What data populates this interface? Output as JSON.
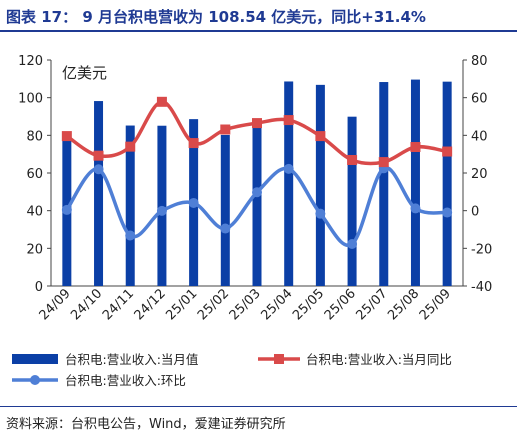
{
  "header": {
    "title": "图表 17： 9 月台积电营收为 108.54 亿美元，同比+31.4%"
  },
  "footer": {
    "source": "资料来源：台积电公告，Wind，爱建证券研究所"
  },
  "chart_data": {
    "type": "bar+line",
    "unit_label": "亿美元",
    "categories": [
      "24/09",
      "24/10",
      "24/11",
      "24/12",
      "25/01",
      "25/02",
      "25/03",
      "25/04",
      "25/05",
      "25/06",
      "25/07",
      "25/08",
      "25/09"
    ],
    "left_axis": {
      "min": 0,
      "max": 120,
      "ticks": [
        0,
        20,
        40,
        60,
        80,
        100,
        120
      ]
    },
    "right_axis": {
      "min": -40,
      "max": 80,
      "ticks": [
        -40,
        -20,
        0,
        20,
        40,
        60,
        80
      ]
    },
    "series": [
      {
        "name": "台积电:营业收入:当月值",
        "type": "bar",
        "axis": "left",
        "color": "#0b3fa6",
        "values": [
          80.5,
          98.2,
          85.2,
          85.1,
          88.6,
          80.2,
          87.9,
          108.6,
          106.8,
          89.9,
          108.3,
          109.6,
          108.5
        ]
      },
      {
        "name": "台积电:营业收入:当月同比",
        "type": "line",
        "axis": "right",
        "color": "#d94a4a",
        "values": [
          39.6,
          29.2,
          34.0,
          57.8,
          35.9,
          43.1,
          46.5,
          48.1,
          39.6,
          26.9,
          25.8,
          33.8,
          31.4
        ]
      },
      {
        "name": "台积电:营业收入:环比",
        "type": "line",
        "axis": "right",
        "color": "#4f7fd6",
        "values": [
          0.4,
          22.0,
          -13.2,
          -0.1,
          4.1,
          -9.5,
          9.8,
          22.2,
          -1.6,
          -17.7,
          22.5,
          1.2,
          -1.0
        ]
      }
    ],
    "grid": false,
    "legend_position": "bottom"
  }
}
